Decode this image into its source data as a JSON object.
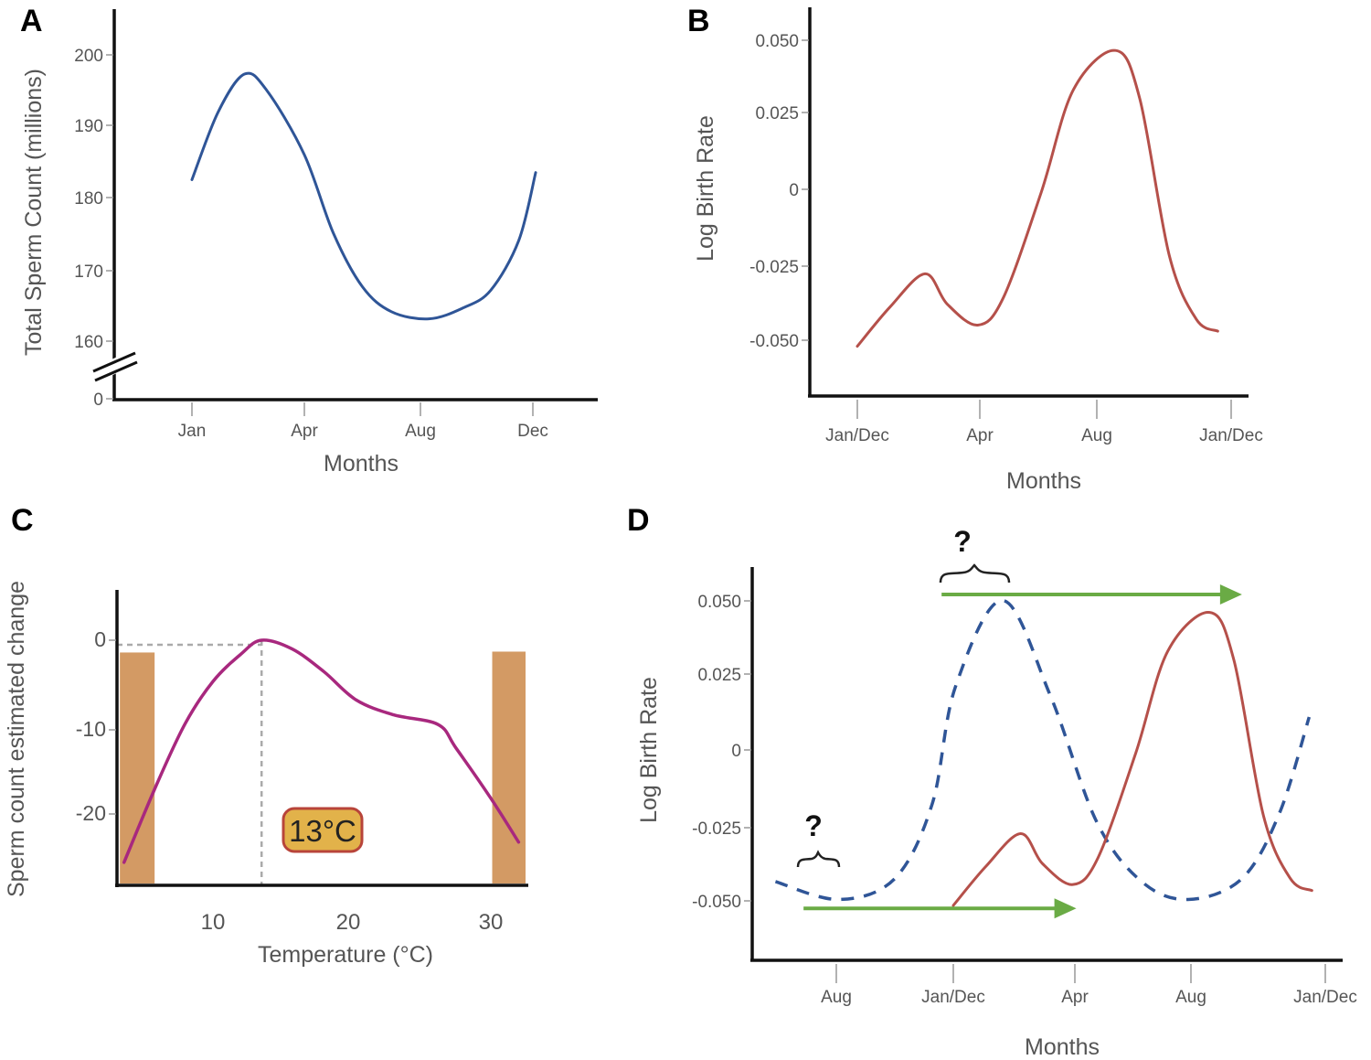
{
  "chart_data": [
    {
      "panel": "A",
      "type": "line",
      "title": "",
      "xlabel": "Months",
      "ylabel": "Total Sperm Count (millions)",
      "x_ticks": [
        "Jan",
        "Apr",
        "Aug",
        "Dec"
      ],
      "x_tick_months": [
        1,
        4,
        8,
        12
      ],
      "y_ticks": [
        "200",
        "190",
        "180",
        "170",
        "160",
        "0"
      ],
      "y_axis_break": true,
      "ylim": [
        160,
        200
      ],
      "series": [
        {
          "name": "Total sperm count",
          "color": "#2f5597",
          "style": "solid",
          "x": [
            1,
            1.7,
            2.4,
            3,
            4,
            5,
            6,
            7,
            8.3,
            9.5,
            10.5,
            11.5,
            12.1
          ],
          "y": [
            182.5,
            192,
            197.3,
            195,
            186,
            175,
            167.5,
            164,
            163,
            164.5,
            167,
            174,
            183.5
          ]
        }
      ]
    },
    {
      "panel": "B",
      "type": "line",
      "xlabel": "Months",
      "ylabel": "Log Birth Rate",
      "x_ticks": [
        "Jan/Dec",
        "Apr",
        "Aug",
        "Jan/Dec"
      ],
      "x_tick_months": [
        0,
        3,
        7,
        12
      ],
      "y_ticks": [
        "0.050",
        "0.025",
        "0",
        "-0.025",
        "-0.050"
      ],
      "ylim": [
        -0.06,
        0.06
      ],
      "series": [
        {
          "name": "Log birth rate",
          "color": "#b5504a",
          "style": "solid",
          "x": [
            0,
            0.8,
            1.66,
            2.2,
            2.95,
            3.8,
            5.1,
            6.2,
            7.7,
            8.6,
            9.7,
            10.7,
            11.5
          ],
          "y": [
            -0.052,
            -0.039,
            -0.028,
            -0.038,
            -0.045,
            -0.036,
            -0.001,
            0.033,
            0.046,
            0.03,
            -0.022,
            -0.043,
            -0.047
          ]
        }
      ]
    },
    {
      "panel": "C",
      "type": "line",
      "xlabel": "Temperature (°C)",
      "ylabel": "Sperm count estimated change",
      "x_ticks": [
        "10",
        "20",
        "30"
      ],
      "y_ticks": [
        "0",
        "-10",
        "-20"
      ],
      "xlim": [
        3,
        33
      ],
      "ylim": [
        -29,
        6
      ],
      "series": [
        {
          "name": "Estimated change",
          "color": "#a8287e",
          "style": "solid",
          "x": [
            3.6,
            5.9,
            8,
            10,
            12,
            13.5,
            15.7,
            18,
            20.3,
            23,
            26.2,
            27.5,
            30,
            32
          ],
          "y": [
            -25.3,
            -16.6,
            -9.5,
            -4.7,
            -1.6,
            0,
            -1,
            -3.6,
            -6.8,
            -8.5,
            -9.6,
            -12.3,
            -18,
            -23
          ]
        }
      ],
      "shaded_bars": [
        {
          "x_range": [
            3.3,
            5.8
          ],
          "top": -1.4,
          "color": "#d39a64"
        },
        {
          "x_range": [
            30.1,
            32.5
          ],
          "top": -1.3,
          "color": "#d39a64"
        }
      ],
      "optimum_marker": {
        "x": 13.5,
        "y": 0
      },
      "annotation": "13°C",
      "annotation_colors": {
        "fill": "#e2b24a",
        "border": "#b8443a"
      }
    },
    {
      "panel": "D",
      "type": "line",
      "xlabel": "Months",
      "ylabel": "Log Birth Rate",
      "x_ticks": [
        "Aug",
        "Jan/Dec",
        "Apr",
        "Aug",
        "Jan/Dec"
      ],
      "x_tick_months": [
        -5,
        0,
        3,
        7,
        12
      ],
      "y_ticks": [
        "0.050",
        "0.025",
        "0",
        "-0.025",
        "-0.050"
      ],
      "ylim": [
        -0.07,
        0.06
      ],
      "series": [
        {
          "name": "Sperm count (shifted)",
          "color": "#2f5597",
          "style": "dashed",
          "x": [
            -7.6,
            -4.9,
            -2.5,
            -0.9,
            0.05,
            1.22,
            2.4,
            3.75,
            5.3,
            6.9,
            8.9,
            10.3,
            11.4
          ],
          "y": [
            -0.044,
            -0.05,
            -0.043,
            -0.018,
            0.021,
            0.05,
            0.018,
            -0.024,
            -0.044,
            -0.05,
            -0.043,
            -0.021,
            0.011
          ]
        },
        {
          "name": "Log birth rate",
          "color": "#b5504a",
          "style": "solid",
          "x": [
            0,
            0.8,
            1.66,
            2.2,
            2.95,
            3.8,
            5.1,
            6.2,
            7.7,
            8.6,
            9.7,
            10.7,
            11.5
          ],
          "y": [
            -0.052,
            -0.039,
            -0.028,
            -0.038,
            -0.045,
            -0.036,
            -0.001,
            0.033,
            0.046,
            0.03,
            -0.022,
            -0.043,
            -0.047
          ]
        }
      ],
      "arrows": [
        {
          "from": -0.5,
          "to": 8.9,
          "y": 0.052,
          "color": "#6aab45"
        },
        {
          "from": -6.4,
          "to": 3.05,
          "y": -0.053,
          "color": "#6aab45"
        }
      ],
      "annotations": [
        "?",
        "?"
      ]
    }
  ],
  "panel_letters": [
    "A",
    "B",
    "C",
    "D"
  ]
}
